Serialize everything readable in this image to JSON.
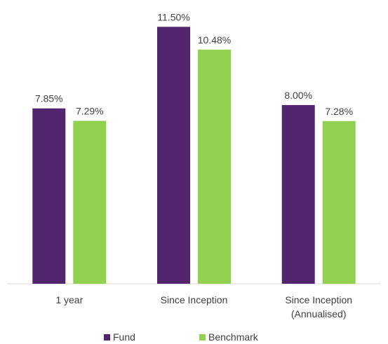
{
  "chart_data": {
    "type": "bar",
    "categories": [
      [
        "1 year"
      ],
      [
        "Since Inception"
      ],
      [
        "Since Inception",
        "(Annualised)"
      ]
    ],
    "series": [
      {
        "name": "Fund",
        "color": "#54256f",
        "values": [
          7.85,
          11.5,
          8.0
        ],
        "labels": [
          "7.85%",
          "11.50%",
          "8.00%"
        ]
      },
      {
        "name": "Benchmark",
        "color": "#92d050",
        "values": [
          7.29,
          10.48,
          7.28
        ],
        "labels": [
          "7.29%",
          "10.48%",
          "7.28%"
        ]
      }
    ],
    "ylim": [
      0,
      12.7
    ],
    "grid": false,
    "legend_position": "bottom",
    "title": "",
    "xlabel": "",
    "ylabel": ""
  }
}
